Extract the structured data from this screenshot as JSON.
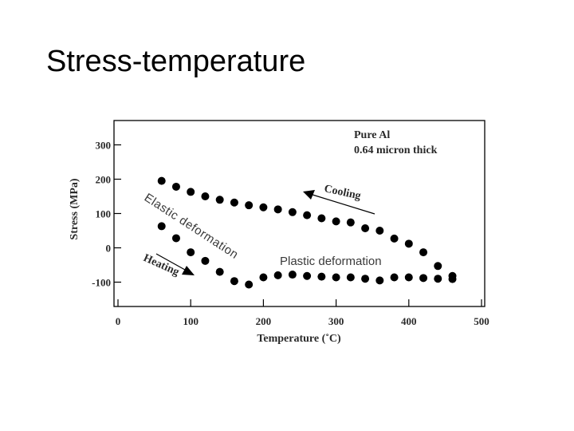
{
  "slide": {
    "title": "Stress-temperature"
  },
  "chart_data": {
    "type": "scatter",
    "title": "",
    "xlabel": "Temperature (˚C)",
    "ylabel": "Stress (MPa)",
    "xlim": [
      0,
      500
    ],
    "ylim": [
      -130,
      360
    ],
    "xticks": [
      0,
      100,
      200,
      300,
      400,
      500
    ],
    "yticks": [
      300,
      200,
      100,
      0,
      -100
    ],
    "grid": false,
    "legend": "none",
    "annotations": {
      "sample_line1": "Pure Al",
      "sample_line2": "0.64 micron thick",
      "cooling": "Cooling",
      "heating": "Heating",
      "elastic": "Elastic deformation",
      "plastic": "Plastic deformation"
    },
    "series": [
      {
        "points": [
          [
            60,
            195
          ],
          [
            80,
            178
          ],
          [
            100,
            163
          ],
          [
            120,
            150
          ],
          [
            140,
            140
          ],
          [
            160,
            132
          ],
          [
            180,
            124
          ],
          [
            200,
            118
          ],
          [
            220,
            112
          ],
          [
            240,
            104
          ],
          [
            260,
            95
          ],
          [
            280,
            86
          ],
          [
            300,
            77
          ],
          [
            320,
            74
          ],
          [
            340,
            57
          ],
          [
            360,
            50
          ],
          [
            380,
            27
          ],
          [
            400,
            12
          ],
          [
            420,
            -13
          ],
          [
            440,
            -53
          ],
          [
            460,
            -82
          ]
        ]
      },
      {
        "points": [
          [
            60,
            63
          ],
          [
            80,
            28
          ],
          [
            100,
            -13
          ],
          [
            120,
            -38
          ],
          [
            140,
            -70
          ],
          [
            160,
            -97
          ],
          [
            180,
            -107
          ],
          [
            200,
            -86
          ],
          [
            220,
            -80
          ],
          [
            240,
            -78
          ],
          [
            260,
            -82
          ],
          [
            280,
            -84
          ],
          [
            300,
            -86
          ],
          [
            320,
            -86
          ],
          [
            340,
            -90
          ],
          [
            360,
            -95
          ],
          [
            380,
            -86
          ],
          [
            400,
            -86
          ],
          [
            420,
            -88
          ],
          [
            440,
            -90
          ],
          [
            460,
            -91
          ]
        ]
      }
    ],
    "colors": {
      "marker": "#000000",
      "axis": "#000000",
      "label": "#2a2a2a"
    }
  }
}
